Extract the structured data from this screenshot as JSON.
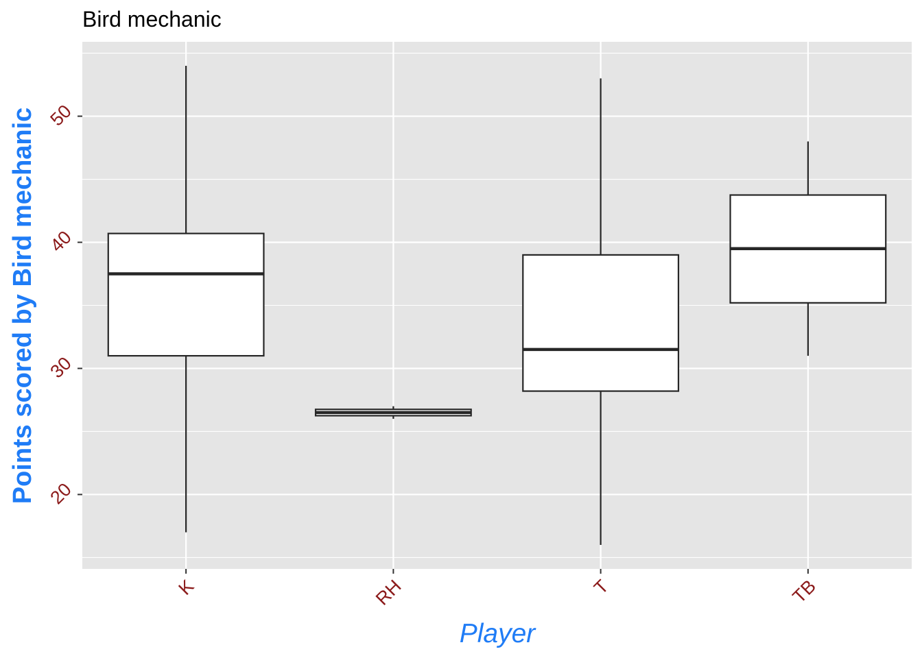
{
  "chart_data": {
    "type": "boxplot",
    "title": "Bird mechanic",
    "xlabel": "Player",
    "ylabel": "Points scored by Bird mechanic",
    "categories": [
      "K",
      "RH",
      "T",
      "TB"
    ],
    "boxes": [
      {
        "category": "K",
        "min": 17,
        "q1": 31,
        "median": 37.5,
        "q3": 40.7,
        "max": 54
      },
      {
        "category": "RH",
        "min": 26,
        "q1": 26.25,
        "median": 26.5,
        "q3": 26.75,
        "max": 27
      },
      {
        "category": "T",
        "min": 16,
        "q1": 28.2,
        "median": 31.5,
        "q3": 39,
        "max": 53
      },
      {
        "category": "TB",
        "min": 31,
        "q1": 35.2,
        "median": 39.5,
        "q3": 43.75,
        "max": 48
      }
    ],
    "yticks": [
      "20",
      "30",
      "40",
      "50"
    ],
    "ytick_values": [
      20,
      30,
      40,
      50
    ],
    "ylim": [
      14.1,
      55.9
    ],
    "grid": true,
    "colors": {
      "panel_background": "#e5e5e5",
      "grid": "#ffffff",
      "box_fill": "#ffffff",
      "box_stroke": "#262626",
      "tick_label": "#8b1a1a",
      "axis_title": "#1f7cf6"
    }
  }
}
